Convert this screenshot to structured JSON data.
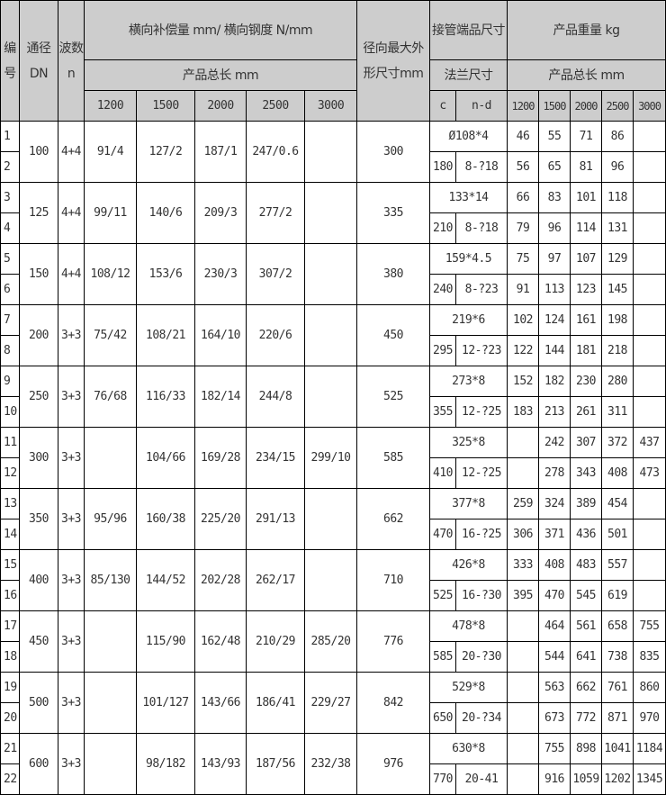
{
  "header": {
    "id": "编号",
    "dn": "通径DN",
    "waves": "波数n",
    "stiffness": "横向补偿量 mm/ 横向钢度 N/mm",
    "total_length": "产品总长 mm",
    "lengths": [
      "1200",
      "1500",
      "2000",
      "2500",
      "3000"
    ],
    "radial": "径向最大外形尺寸mm",
    "pipe_end": "接管端品尺寸",
    "flange": "法兰尺寸",
    "c": "c",
    "nd": "n-d",
    "weight": "产品重量 kg",
    "weight_length": "产品总长 mm"
  },
  "groups": [
    {
      "ids": [
        "1",
        "2"
      ],
      "dn": "100",
      "n": "4+4",
      "stiffness": [
        "91/4",
        "127/2",
        "187/1",
        "247/0.6",
        ""
      ],
      "radial": "300",
      "pipe": "Ø108*4",
      "c": "180",
      "nd": "8-?18",
      "w1": [
        "46",
        "55",
        "71",
        "86",
        ""
      ],
      "w2": [
        "56",
        "65",
        "81",
        "96",
        ""
      ]
    },
    {
      "ids": [
        "3",
        "4"
      ],
      "dn": "125",
      "n": "4+4",
      "stiffness": [
        "99/11",
        "140/6",
        "209/3",
        "277/2",
        ""
      ],
      "radial": "335",
      "pipe": "133*14",
      "c": "210",
      "nd": "8-?18",
      "w1": [
        "66",
        "83",
        "101",
        "118",
        ""
      ],
      "w2": [
        "79",
        "96",
        "114",
        "131",
        ""
      ]
    },
    {
      "ids": [
        "5",
        "6"
      ],
      "dn": "150",
      "n": "4+4",
      "stiffness": [
        "108/12",
        "153/6",
        "230/3",
        "307/2",
        ""
      ],
      "radial": "380",
      "pipe": "159*4.5",
      "c": "240",
      "nd": "8-?23",
      "w1": [
        "75",
        "97",
        "107",
        "129",
        ""
      ],
      "w2": [
        "91",
        "113",
        "123",
        "145",
        ""
      ]
    },
    {
      "ids": [
        "7",
        "8"
      ],
      "dn": "200",
      "n": "3+3",
      "stiffness": [
        "75/42",
        "108/21",
        "164/10",
        "220/6",
        ""
      ],
      "radial": "450",
      "pipe": "219*6",
      "c": "295",
      "nd": "12-?23",
      "w1": [
        "102",
        "124",
        "161",
        "198",
        ""
      ],
      "w2": [
        "122",
        "144",
        "181",
        "218",
        ""
      ]
    },
    {
      "ids": [
        "9",
        "10"
      ],
      "dn": "250",
      "n": "3+3",
      "stiffness": [
        "76/68",
        "116/33",
        "182/14",
        "244/8",
        ""
      ],
      "radial": "525",
      "pipe": "273*8",
      "c": "355",
      "nd": "12-?25",
      "w1": [
        "152",
        "182",
        "230",
        "280",
        ""
      ],
      "w2": [
        "183",
        "213",
        "261",
        "311",
        ""
      ]
    },
    {
      "ids": [
        "11",
        "12"
      ],
      "dn": "300",
      "n": "3+3",
      "stiffness": [
        "",
        "104/66",
        "169/28",
        "234/15",
        "299/10"
      ],
      "radial": "585",
      "pipe": "325*8",
      "c": "410",
      "nd": "12-?25",
      "w1": [
        "",
        "242",
        "307",
        "372",
        "437"
      ],
      "w2": [
        "",
        "278",
        "343",
        "408",
        "473"
      ]
    },
    {
      "ids": [
        "13",
        "14"
      ],
      "dn": "350",
      "n": "3+3",
      "stiffness": [
        "95/96",
        "160/38",
        "225/20",
        "291/13",
        ""
      ],
      "radial": "662",
      "pipe": "377*8",
      "c": "470",
      "nd": "16-?25",
      "w1": [
        "259",
        "324",
        "389",
        "454",
        ""
      ],
      "w2": [
        "306",
        "371",
        "436",
        "501",
        ""
      ]
    },
    {
      "ids": [
        "15",
        "16"
      ],
      "dn": "400",
      "n": "3+3",
      "stiffness": [
        "85/130",
        "144/52",
        "202/28",
        "262/17",
        ""
      ],
      "radial": "710",
      "pipe": "426*8",
      "c": "525",
      "nd": "16-?30",
      "w1": [
        "333",
        "408",
        "483",
        "557",
        ""
      ],
      "w2": [
        "395",
        "470",
        "545",
        "619",
        ""
      ]
    },
    {
      "ids": [
        "17",
        "18"
      ],
      "dn": "450",
      "n": "3+3",
      "stiffness": [
        "",
        "115/90",
        "162/48",
        "210/29",
        "285/20"
      ],
      "radial": "776",
      "pipe": "478*8",
      "c": "585",
      "nd": "20-?30",
      "w1": [
        "",
        "464",
        "561",
        "658",
        "755"
      ],
      "w2": [
        "",
        "544",
        "641",
        "738",
        "835"
      ]
    },
    {
      "ids": [
        "19",
        "20"
      ],
      "dn": "500",
      "n": "3+3",
      "stiffness": [
        "",
        "101/127",
        "143/66",
        "186/41",
        "229/27"
      ],
      "radial": "842",
      "pipe": "529*8",
      "c": "650",
      "nd": "20-?34",
      "w1": [
        "",
        "563",
        "662",
        "761",
        "860"
      ],
      "w2": [
        "",
        "673",
        "772",
        "871",
        "970"
      ]
    },
    {
      "ids": [
        "21",
        "22"
      ],
      "dn": "600",
      "n": "3+3",
      "stiffness": [
        "",
        "98/182",
        "143/93",
        "187/56",
        "232/38"
      ],
      "radial": "976",
      "pipe": "630*8",
      "c": "770",
      "nd": "20-41",
      "w1": [
        "",
        "755",
        "898",
        "1041",
        "1184"
      ],
      "w2": [
        "",
        "916",
        "1059",
        "1202",
        "1345"
      ]
    }
  ]
}
